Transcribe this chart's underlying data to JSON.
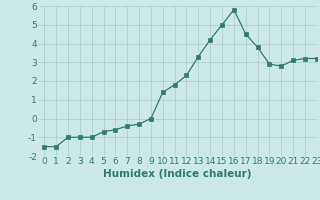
{
  "x": [
    0,
    1,
    2,
    3,
    4,
    5,
    6,
    7,
    8,
    9,
    10,
    11,
    12,
    13,
    14,
    15,
    16,
    17,
    18,
    19,
    20,
    21,
    22,
    23
  ],
  "y": [
    -1.5,
    -1.5,
    -1.0,
    -1.0,
    -1.0,
    -0.7,
    -0.6,
    -0.4,
    -0.3,
    0.0,
    1.4,
    1.8,
    2.3,
    3.3,
    4.2,
    5.0,
    5.8,
    4.5,
    3.8,
    2.9,
    2.8,
    3.1,
    3.2,
    3.2
  ],
  "xlabel": "Humidex (Indice chaleur)",
  "ylim": [
    -2,
    6
  ],
  "xlim": [
    -0.5,
    23
  ],
  "yticks": [
    -2,
    -1,
    0,
    1,
    2,
    3,
    4,
    5,
    6
  ],
  "xticks": [
    0,
    1,
    2,
    3,
    4,
    5,
    6,
    7,
    8,
    9,
    10,
    11,
    12,
    13,
    14,
    15,
    16,
    17,
    18,
    19,
    20,
    21,
    22,
    23
  ],
  "line_color": "#2e7d6e",
  "marker_color": "#2e7d6e",
  "bg_color": "#cde8e8",
  "grid_color": "#b0d0d0",
  "tick_label_color": "#2e7d6e",
  "xlabel_color": "#2e7d6e",
  "font_size_ticks": 6.5,
  "font_size_xlabel": 7.5
}
